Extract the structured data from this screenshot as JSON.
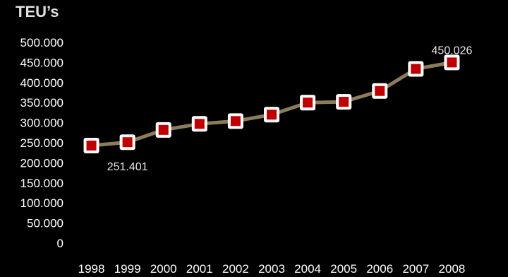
{
  "chart_data": {
    "type": "line",
    "title": "TEU’s",
    "xlabel": "",
    "ylabel": "",
    "categories": [
      "1998",
      "1999",
      "2000",
      "2001",
      "2002",
      "2003",
      "2004",
      "2005",
      "2006",
      "2007",
      "2008"
    ],
    "series": [
      {
        "values": [
          243000,
          251401,
          282000,
          297000,
          304000,
          320000,
          350000,
          352000,
          379000,
          434000,
          450026
        ]
      }
    ],
    "ylim": [
      0,
      500000
    ],
    "yticks": [
      0,
      50000,
      100000,
      150000,
      200000,
      250000,
      300000,
      350000,
      400000,
      450000,
      500000
    ],
    "ytick_labels": [
      "0",
      "50.000",
      "100.000",
      "150.000",
      "200.000",
      "250.000",
      "300.000",
      "350.000",
      "400.000",
      "450.000",
      "500.000"
    ],
    "data_labels": [
      {
        "index": 1,
        "text": "251.401",
        "position": "below"
      },
      {
        "index": 10,
        "text": "450.026",
        "position": "above"
      }
    ],
    "grid": false,
    "legend": "none",
    "colors": {
      "background": "#000000",
      "line": "#8b7d5c",
      "marker_fill": "#c00000",
      "marker_edge": "#ffffff",
      "text": "#ffffff"
    }
  }
}
